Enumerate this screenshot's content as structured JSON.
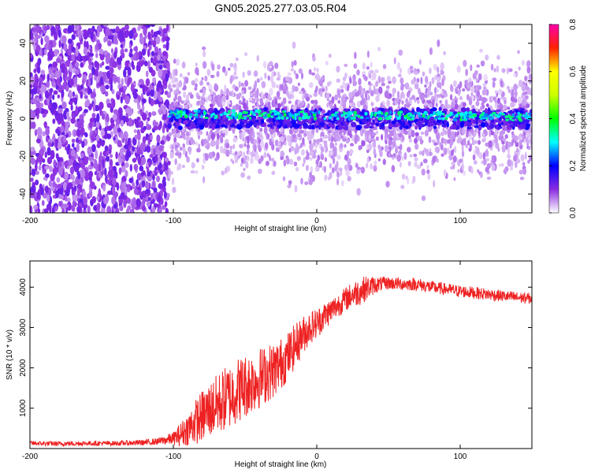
{
  "title": "GN05.2025.277.03.05.R04",
  "colors": {
    "snr_line": "#ee2222",
    "axis": "#000000",
    "background": "#ffffff"
  },
  "chart_data": [
    {
      "type": "heatmap",
      "title": "GN05.2025.277.03.05.R04",
      "xlabel": "Height of straight line (km)",
      "ylabel": "Frequency (Hz)",
      "xlim": [
        -200,
        150
      ],
      "ylim": [
        -50,
        50
      ],
      "x_ticks": [
        {
          "value": -200,
          "label": "-200"
        },
        {
          "value": -100,
          "label": "-100"
        },
        {
          "value": 0,
          "label": "0"
        },
        {
          "value": 100,
          "label": "100"
        }
      ],
      "y_ticks": [
        {
          "value": -40,
          "label": "-40"
        },
        {
          "value": -20,
          "label": "-20"
        },
        {
          "value": 0,
          "label": "0"
        },
        {
          "value": 20,
          "label": "20"
        },
        {
          "value": 40,
          "label": "40"
        }
      ],
      "colorbar": {
        "label": "Normalized spectral amplitude",
        "range": [
          0,
          0.8
        ],
        "ticks": [
          {
            "value": 0.0,
            "label": "0.0"
          },
          {
            "value": 0.2,
            "label": "0.2"
          },
          {
            "value": 0.4,
            "label": "0.4"
          },
          {
            "value": 0.6,
            "label": "0.6"
          },
          {
            "value": 0.8,
            "label": "0.8"
          }
        ],
        "stops": [
          {
            "value": 0.0,
            "color": "#ffffff"
          },
          {
            "value": 0.1,
            "color": "#8a2be2"
          },
          {
            "value": 0.2,
            "color": "#0000ff"
          },
          {
            "value": 0.3,
            "color": "#00ffff"
          },
          {
            "value": 0.4,
            "color": "#00ff00"
          },
          {
            "value": 0.5,
            "color": "#ccff00"
          },
          {
            "value": 0.6,
            "color": "#ffff00"
          },
          {
            "value": 0.7,
            "color": "#ff2200"
          },
          {
            "value": 0.8,
            "color": "#ff00aa"
          }
        ]
      },
      "regions": [
        {
          "x_range": [
            -200,
            -103
          ],
          "freq_range": [
            -50,
            50
          ],
          "amplitude": "0.08-0.12",
          "description": "noise"
        },
        {
          "x_range": [
            -103,
            150
          ],
          "freq_range": [
            -3,
            3
          ],
          "amplitude": "0.2-0.35",
          "description": "signal band near 0 Hz"
        }
      ]
    },
    {
      "type": "line",
      "xlabel": "Height of straight line (km)",
      "ylabel": "SNR (10 * v/v)",
      "xlim": [
        -200,
        150
      ],
      "ylim": [
        0,
        4650
      ],
      "x_ticks": [
        {
          "value": -200,
          "label": "-200"
        },
        {
          "value": -100,
          "label": "-100"
        },
        {
          "value": 0,
          "label": "0"
        },
        {
          "value": 100,
          "label": "100"
        }
      ],
      "y_ticks": [
        {
          "value": 1000,
          "label": "1000"
        },
        {
          "value": 2000,
          "label": "2000"
        },
        {
          "value": 3000,
          "label": "3000"
        },
        {
          "value": 4000,
          "label": "4000"
        }
      ],
      "series": [
        {
          "name": "SNR",
          "x": [
            -200,
            -180,
            -160,
            -140,
            -120,
            -110,
            -100,
            -95,
            -90,
            -85,
            -80,
            -75,
            -70,
            -65,
            -60,
            -55,
            -50,
            -45,
            -40,
            -35,
            -30,
            -25,
            -20,
            -15,
            -10,
            -5,
            0,
            5,
            10,
            15,
            20,
            25,
            30,
            35,
            40,
            45,
            50,
            60,
            70,
            80,
            90,
            100,
            110,
            120,
            130,
            140,
            150
          ],
          "y": [
            130,
            120,
            130,
            130,
            150,
            180,
            250,
            350,
            480,
            650,
            800,
            950,
            1080,
            1200,
            1320,
            1460,
            1550,
            1650,
            1750,
            1850,
            1950,
            2100,
            2300,
            2550,
            2800,
            3000,
            3100,
            3280,
            3420,
            3560,
            3700,
            3820,
            3900,
            3980,
            4050,
            4080,
            4100,
            4080,
            4070,
            4000,
            3950,
            3900,
            3860,
            3820,
            3780,
            3740,
            3720
          ],
          "spread": [
            60,
            60,
            60,
            60,
            70,
            90,
            160,
            300,
            400,
            550,
            650,
            700,
            750,
            800,
            820,
            820,
            800,
            780,
            760,
            720,
            700,
            650,
            600,
            550,
            480,
            420,
            380,
            350,
            320,
            300,
            300,
            320,
            350,
            300,
            220,
            180,
            160,
            160,
            160,
            160,
            150,
            150,
            150,
            150,
            140,
            140,
            140
          ]
        }
      ]
    }
  ]
}
